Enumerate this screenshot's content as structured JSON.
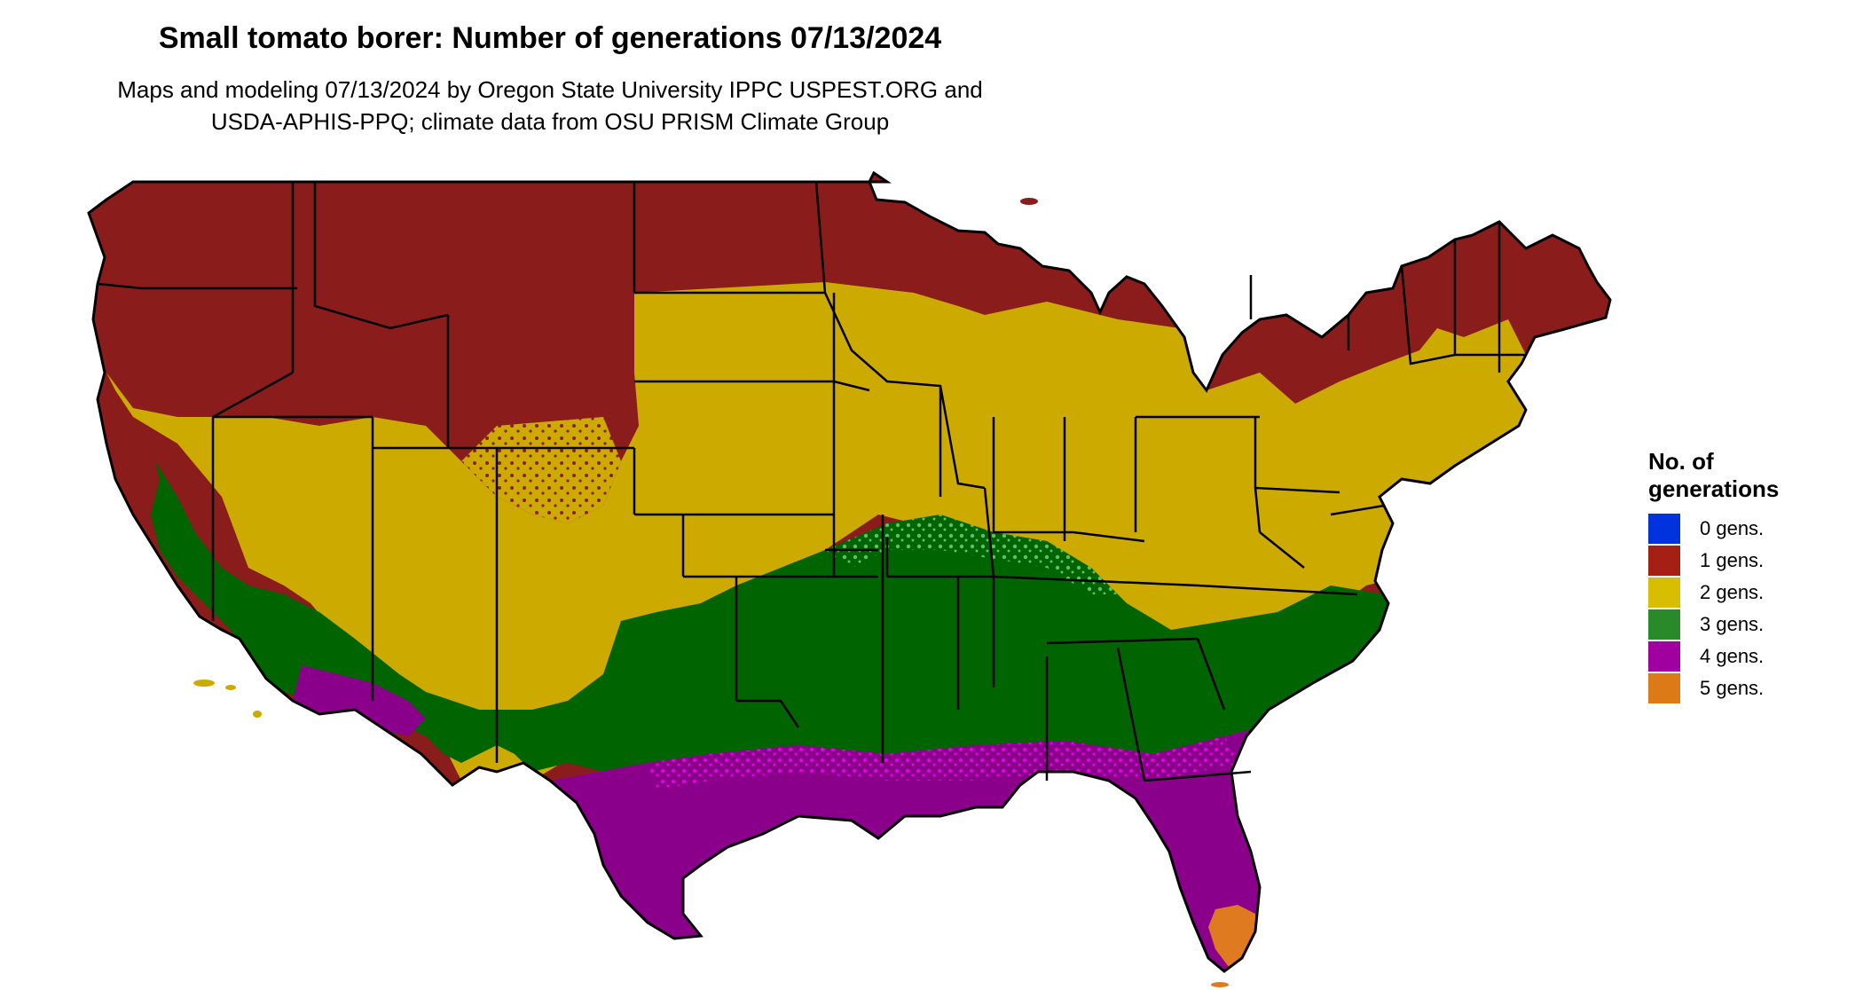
{
  "title": "Small tomato borer: Number of generations 07/13/2024",
  "subtitle_lines": [
    "Maps and modeling 07/13/2024 by Oregon State University IPPC USPEST.ORG and",
    "USDA-APHIS-PPQ; climate data from OSU PRISM Climate Group"
  ],
  "legend": {
    "title_lines": [
      "No. of",
      "generations"
    ],
    "items": [
      {
        "label": "0 gens.",
        "color": "#0033dd"
      },
      {
        "label": "1 gens.",
        "color": "#a51f14"
      },
      {
        "label": "2 gens.",
        "color": "#d8be00"
      },
      {
        "label": "3 gens.",
        "color": "#2a8a2a"
      },
      {
        "label": "4 gens.",
        "color": "#a000a0"
      },
      {
        "label": "5 gens.",
        "color": "#dd7a18"
      }
    ]
  },
  "map_colors": {
    "zone1": "#8b1c1c",
    "zone2": "#ccaa00",
    "zone3": "#006400",
    "zone3_light": "#5fbf6f",
    "zone4": "#8b008b",
    "zone4_bright": "#e000e0",
    "zone5": "#e07a20",
    "borders": "#000000"
  }
}
